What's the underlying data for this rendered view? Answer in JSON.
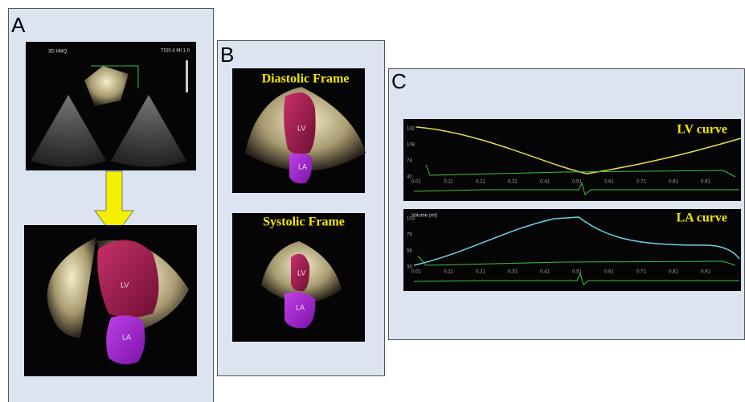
{
  "panels": [
    {
      "label": "A",
      "image_texts": [
        "3D HMQ",
        "TIS0.4 MI 1.0"
      ],
      "chamber_labels": [
        "LV",
        "LA"
      ]
    },
    {
      "label": "B",
      "frames": [
        {
          "title": "Diastolic Frame",
          "chamber_labels": [
            "LV",
            "LA"
          ]
        },
        {
          "title": "Systolic Frame",
          "chamber_labels": [
            "LV",
            "LA"
          ]
        }
      ]
    },
    {
      "label": "C",
      "curves": [
        {
          "title": "LV curve",
          "yticks": [
            "142",
            "108",
            "74",
            "40"
          ],
          "xticks": [
            "0.01",
            "0.11",
            "0.21",
            "0.31",
            "0.41",
            "0.51",
            "0.61",
            "0.71",
            "0.81",
            "0.91"
          ]
        },
        {
          "title": "LA curve",
          "axis_label": "Volume (ml)",
          "yticks": [
            "103",
            "79",
            "56",
            "33"
          ],
          "xticks": [
            "0.01",
            "0.11",
            "0.21",
            "0.31",
            "0.41",
            "0.51",
            "0.61",
            "0.71",
            "0.81",
            "0.91"
          ]
        }
      ]
    }
  ]
}
